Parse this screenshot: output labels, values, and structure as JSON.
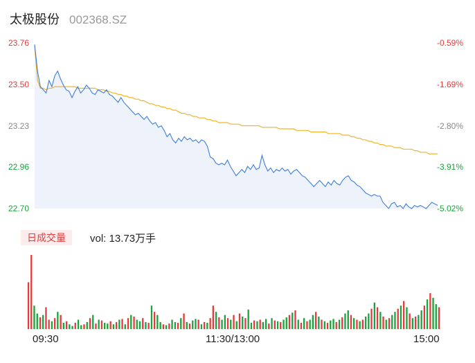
{
  "stock": {
    "name": "太极股份",
    "code": "002368.SZ"
  },
  "volume_panel": {
    "tag": "日成交量",
    "vol_label": "vol: 13.73万手"
  },
  "colors": {
    "price_line": "#3b7ddd",
    "avg_line": "#f0b429",
    "up": "#e23b3b",
    "down": "#1aa33a",
    "area": "#eef3fb"
  },
  "chart_data": [
    {
      "type": "line",
      "y_ticks": [
        "23.76",
        "23.50",
        "23.23",
        "22.96",
        "22.70"
      ],
      "y_ticks_right": [
        "-0.59%",
        "-1.69%",
        "-2.80%",
        "-3.91%",
        "-5.02%"
      ],
      "ylim": [
        22.7,
        23.76
      ],
      "x_ticks": [
        "09:30",
        "11:30/13:00",
        "15:00"
      ],
      "series": [
        {
          "values": [
            23.75,
            23.58,
            23.48,
            23.46,
            23.44,
            23.52,
            23.48,
            23.55,
            23.58,
            23.53,
            23.49,
            23.46,
            23.45,
            23.41,
            23.45,
            23.48,
            23.44,
            23.46,
            23.49,
            23.47,
            23.44,
            23.43,
            23.46,
            23.45,
            23.44,
            23.46,
            23.43,
            23.42,
            23.4,
            23.38,
            23.41,
            23.38,
            23.36,
            23.34,
            23.32,
            23.3,
            23.31,
            23.29,
            23.27,
            23.29,
            23.26,
            23.24,
            23.25,
            23.22,
            23.23,
            23.2,
            23.16,
            23.18,
            23.14,
            23.12,
            23.15,
            23.13,
            23.16,
            23.14,
            23.15,
            23.13,
            23.14,
            23.12,
            23.14,
            23.13,
            23.1,
            23.03,
            23.02,
            22.99,
            22.98,
            22.99,
            22.98,
            23.01,
            22.97,
            22.94,
            22.91,
            22.93,
            22.95,
            22.93,
            22.97,
            22.95,
            22.98,
            22.95,
            22.96,
            23.04,
            22.98,
            22.94,
            22.96,
            22.93,
            22.95,
            22.94,
            22.96,
            22.94,
            22.95,
            22.92,
            22.94,
            22.95,
            22.93,
            22.91,
            22.9,
            22.88,
            22.86,
            22.84,
            22.86,
            22.88,
            22.86,
            22.84,
            22.87,
            22.85,
            22.88,
            22.86,
            22.85,
            22.88,
            22.9,
            22.91,
            22.88,
            22.87,
            22.85,
            22.84,
            22.82,
            22.8,
            22.79,
            22.78,
            22.79,
            22.78,
            22.78,
            22.74,
            22.72,
            22.7,
            22.73,
            22.74,
            22.71,
            22.72,
            22.7,
            22.73,
            22.71,
            22.7,
            22.72,
            22.71,
            22.72,
            22.71,
            22.7,
            22.72,
            22.74,
            22.73,
            22.72
          ]
        },
        {
          "values": [
            23.74,
            23.52,
            23.47,
            23.47,
            23.46,
            23.47,
            23.47,
            23.48,
            23.48,
            23.48,
            23.48,
            23.48,
            23.48,
            23.48,
            23.48,
            23.47,
            23.47,
            23.47,
            23.47,
            23.47,
            23.47,
            23.47,
            23.46,
            23.46,
            23.46,
            23.45,
            23.45,
            23.44,
            23.44,
            23.43,
            23.43,
            23.42,
            23.42,
            23.41,
            23.41,
            23.4,
            23.4,
            23.39,
            23.39,
            23.38,
            23.37,
            23.37,
            23.36,
            23.36,
            23.35,
            23.35,
            23.34,
            23.34,
            23.33,
            23.33,
            23.32,
            23.31,
            23.31,
            23.3,
            23.3,
            23.29,
            23.29,
            23.28,
            23.28,
            23.28,
            23.27,
            23.27,
            23.26,
            23.26,
            23.25,
            23.25,
            23.25,
            23.25,
            23.24,
            23.24,
            23.24,
            23.24,
            23.23,
            23.23,
            23.23,
            23.23,
            23.23,
            23.23,
            23.23,
            23.22,
            23.22,
            23.22,
            23.22,
            23.22,
            23.22,
            23.21,
            23.21,
            23.21,
            23.21,
            23.21,
            23.21,
            23.2,
            23.2,
            23.2,
            23.2,
            23.2,
            23.19,
            23.19,
            23.19,
            23.19,
            23.19,
            23.19,
            23.18,
            23.18,
            23.18,
            23.18,
            23.18,
            23.17,
            23.17,
            23.17,
            23.16,
            23.16,
            23.15,
            23.15,
            23.14,
            23.14,
            23.13,
            23.13,
            23.12,
            23.12,
            23.11,
            23.11,
            23.1,
            23.1,
            23.1,
            23.09,
            23.09,
            23.09,
            23.08,
            23.08,
            23.08,
            23.08,
            23.07,
            23.07,
            23.06,
            23.06,
            23.06,
            23.05,
            23.05,
            23.05,
            23.05
          ]
        }
      ]
    },
    {
      "type": "bar",
      "values": [
        60,
        95,
        30,
        20,
        15,
        18,
        28,
        12,
        10,
        14,
        22,
        18,
        8,
        10,
        6,
        4,
        8,
        12,
        5,
        6,
        9,
        14,
        18,
        7,
        12,
        11,
        8,
        7,
        10,
        6,
        9,
        12,
        13,
        6,
        14,
        18,
        16,
        12,
        10,
        14,
        9,
        8,
        30,
        22,
        18,
        9,
        6,
        5,
        7,
        12,
        9,
        8,
        14,
        20,
        9,
        7,
        11,
        13,
        12,
        6,
        9,
        8,
        14,
        30,
        22,
        15,
        12,
        18,
        14,
        12,
        18,
        10,
        20,
        16,
        14,
        25,
        8,
        11,
        10,
        12,
        9,
        13,
        7,
        14,
        11,
        10,
        9,
        12,
        15,
        18,
        21,
        24,
        12,
        8,
        14,
        10,
        12,
        18,
        22,
        16,
        12,
        10,
        8,
        11,
        13,
        9,
        12,
        15,
        20,
        24,
        18,
        14,
        12,
        10,
        12,
        16,
        20,
        26,
        34,
        28,
        22,
        16,
        12,
        14,
        18,
        22,
        26,
        30,
        36,
        28,
        20,
        14,
        16,
        18,
        24,
        30,
        38,
        46,
        40,
        32,
        28
      ],
      "up": [
        true,
        true,
        false,
        false,
        true,
        false,
        true,
        true,
        false,
        true,
        false,
        true,
        false,
        true,
        false,
        false,
        true,
        false,
        false,
        true,
        false,
        true,
        false,
        true,
        false,
        true,
        false,
        false,
        true,
        false,
        true,
        false,
        true,
        false,
        true,
        false,
        true,
        false,
        false,
        true,
        false,
        true,
        false,
        true,
        false,
        false,
        true,
        false,
        true,
        false,
        false,
        true,
        false,
        true,
        false,
        true,
        false,
        false,
        true,
        false,
        true,
        false,
        true,
        true,
        false,
        true,
        false,
        false,
        true,
        false,
        true,
        false,
        true,
        false,
        true,
        false,
        false,
        true,
        false,
        true,
        false,
        false,
        true,
        false,
        true,
        false,
        true,
        false,
        false,
        true,
        false,
        true,
        false,
        true,
        false,
        true,
        false,
        false,
        true,
        false,
        true,
        false,
        true,
        false,
        false,
        true,
        false,
        true,
        false,
        false,
        true,
        false,
        true,
        false,
        true,
        false,
        false,
        true,
        false,
        true,
        false,
        true,
        false,
        true,
        false,
        false,
        true,
        false,
        true,
        false,
        true,
        false,
        true,
        false,
        false,
        true,
        false,
        true,
        false,
        false,
        true
      ]
    }
  ]
}
